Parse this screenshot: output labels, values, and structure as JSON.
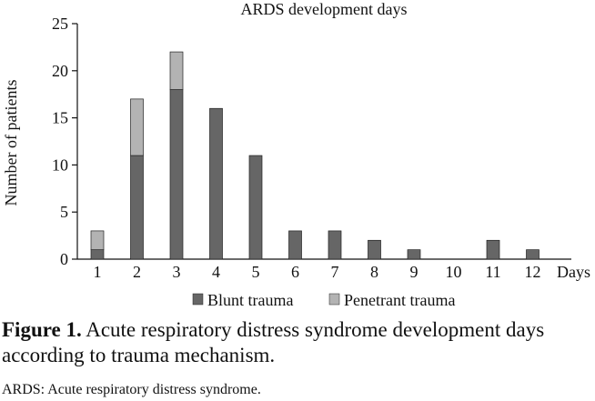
{
  "chart_data": {
    "type": "bar",
    "stacked": true,
    "title": "ARDS development days",
    "xlabel": "Days",
    "ylabel": "Number of patients",
    "categories": [
      "1",
      "2",
      "3",
      "4",
      "5",
      "6",
      "7",
      "8",
      "9",
      "10",
      "11",
      "12"
    ],
    "series": [
      {
        "name": "Blunt trauma",
        "values": [
          1,
          11,
          18,
          16,
          11,
          3,
          3,
          2,
          1,
          0,
          2,
          1
        ]
      },
      {
        "name": "Penetrant trauma",
        "values": [
          2,
          6,
          4,
          0,
          0,
          0,
          0,
          0,
          0,
          0,
          0,
          0
        ]
      }
    ],
    "ylim": [
      0,
      25
    ],
    "yticks": [
      "0",
      "5",
      "10",
      "15",
      "20",
      "25"
    ],
    "grid": false,
    "legend_position": "bottom",
    "colors": {
      "Blunt trauma": "#666666",
      "Penetrant trauma": "#b3b3b3"
    }
  },
  "caption": {
    "label": "Figure 1.",
    "text": " Acute respiratory distress syndrome development days according to trauma mechanism."
  },
  "note": "ARDS: Acute respiratory distress syndrome."
}
